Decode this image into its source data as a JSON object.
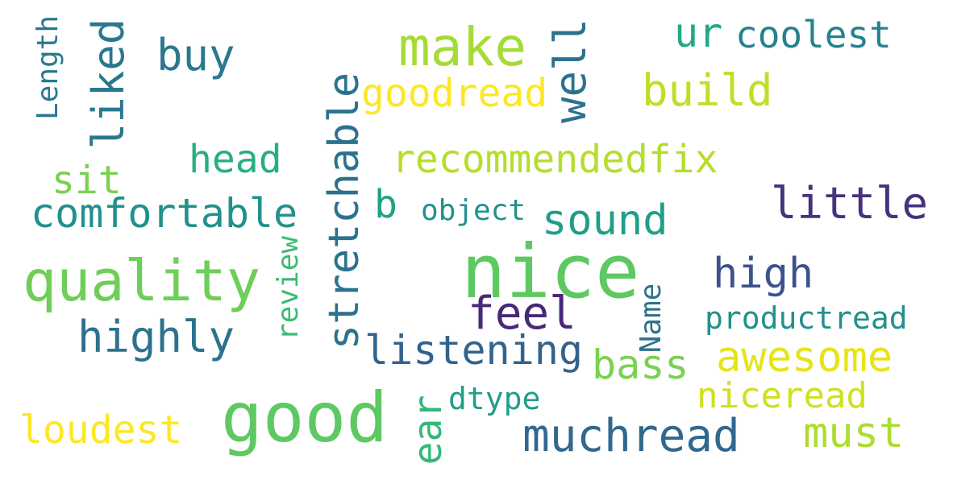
{
  "words": [
    {
      "text": "nice",
      "color": "#5ec962"
    },
    {
      "text": "good",
      "color": "#5ec962"
    },
    {
      "text": "quality",
      "color": "#6ece58"
    },
    {
      "text": "make",
      "color": "#a5db36"
    },
    {
      "text": "stretchable",
      "color": "#2c728e"
    },
    {
      "text": "comfortable",
      "color": "#21918c"
    },
    {
      "text": "recommendedfix",
      "color": "#b5de2b"
    },
    {
      "text": "muchread",
      "color": "#31688e"
    },
    {
      "text": "liked",
      "color": "#2a788e"
    },
    {
      "text": "feel",
      "color": "#482878"
    },
    {
      "text": "awesome",
      "color": "#e5e419"
    },
    {
      "text": "listening",
      "color": "#33638d"
    },
    {
      "text": "highly",
      "color": "#2c728e"
    },
    {
      "text": "little",
      "color": "#46327e"
    },
    {
      "text": "well",
      "color": "#2c728e"
    },
    {
      "text": "build",
      "color": "#bddf26"
    },
    {
      "text": "high",
      "color": "#3b528b"
    },
    {
      "text": "sound",
      "color": "#1f9e89"
    },
    {
      "text": "coolest",
      "color": "#26828e"
    },
    {
      "text": "ear",
      "color": "#35b779"
    },
    {
      "text": "goodread",
      "color": "#fde725"
    },
    {
      "text": "bass",
      "color": "#7ad151"
    },
    {
      "text": "buy",
      "color": "#2a788e"
    },
    {
      "text": "loudest",
      "color": "#fde725"
    },
    {
      "text": "niceread",
      "color": "#d0e11c"
    },
    {
      "text": "must",
      "color": "#addc30"
    },
    {
      "text": "head",
      "color": "#29af7f"
    },
    {
      "text": "sit",
      "color": "#7ad151"
    },
    {
      "text": "ur",
      "color": "#22a884"
    },
    {
      "text": "b",
      "color": "#1fa187"
    },
    {
      "text": "productread",
      "color": "#21918c"
    },
    {
      "text": "Length",
      "color": "#2a788e"
    },
    {
      "text": "dtype",
      "color": "#1f9e89"
    },
    {
      "text": "object",
      "color": "#21918c"
    },
    {
      "text": "review",
      "color": "#3bbb75"
    },
    {
      "text": "Name",
      "color": "#2c728e"
    }
  ]
}
